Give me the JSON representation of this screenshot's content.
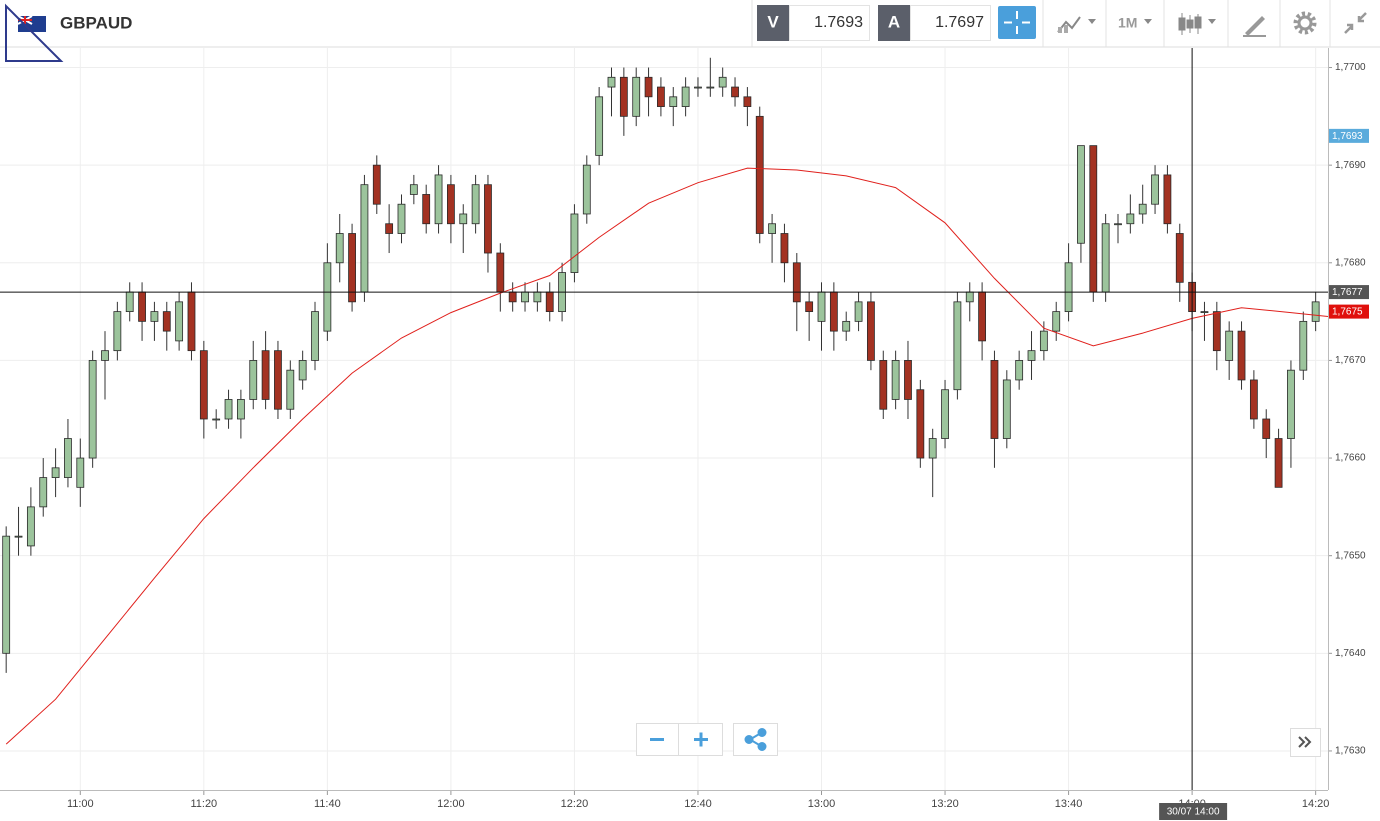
{
  "header": {
    "symbol": "GBPAUD",
    "bid_label": "V",
    "bid": "1.7693",
    "ask_label": "A",
    "ask": "1.7697",
    "timeframe": "1M"
  },
  "chart_data": {
    "type": "candlestick",
    "x": [
      "10:48",
      "10:50",
      "10:52",
      "10:54",
      "10:56",
      "10:58",
      "11:00",
      "11:02",
      "11:04",
      "11:06",
      "11:08",
      "11:10",
      "11:12",
      "11:14",
      "11:16",
      "11:18",
      "11:20",
      "11:22",
      "11:24",
      "11:26",
      "11:28",
      "11:30",
      "11:32",
      "11:34",
      "11:36",
      "11:38",
      "11:40",
      "11:42",
      "11:44",
      "11:46",
      "11:48",
      "11:50",
      "11:52",
      "11:54",
      "11:56",
      "11:58",
      "12:00",
      "12:02",
      "12:04",
      "12:06",
      "12:08",
      "12:10",
      "12:12",
      "12:14",
      "12:16",
      "12:18",
      "12:20",
      "12:22",
      "12:24",
      "12:26",
      "12:28",
      "12:30",
      "12:32",
      "12:34",
      "12:36",
      "12:38",
      "12:40",
      "12:42",
      "12:44",
      "12:46",
      "12:48",
      "12:50",
      "12:52",
      "12:54",
      "12:56",
      "12:58",
      "13:00",
      "13:02",
      "13:04",
      "13:06",
      "13:08",
      "13:10",
      "13:12",
      "13:14",
      "13:16",
      "13:18",
      "13:20",
      "13:22",
      "13:24",
      "13:26",
      "13:28",
      "13:30",
      "13:32",
      "13:34",
      "13:36",
      "13:38",
      "13:40",
      "13:42",
      "13:44",
      "13:46",
      "13:48",
      "13:50",
      "13:52",
      "13:54",
      "13:56",
      "13:58",
      "14:00",
      "14:02",
      "14:04",
      "14:06",
      "14:08",
      "14:10",
      "14:12",
      "14:14",
      "14:16",
      "14:18",
      "14:20"
    ],
    "open": [
      1.764,
      1.7652,
      1.7651,
      1.7655,
      1.7658,
      1.7658,
      1.7657,
      1.766,
      1.767,
      1.7671,
      1.7675,
      1.7677,
      1.7674,
      1.7675,
      1.7672,
      1.7677,
      1.7671,
      1.7664,
      1.7664,
      1.7664,
      1.7666,
      1.7671,
      1.7671,
      1.7665,
      1.7668,
      1.767,
      1.7673,
      1.768,
      1.7683,
      1.7677,
      1.769,
      1.7684,
      1.7683,
      1.7687,
      1.7687,
      1.7684,
      1.7688,
      1.7684,
      1.7684,
      1.7688,
      1.7681,
      1.7677,
      1.7676,
      1.7676,
      1.7677,
      1.7675,
      1.7679,
      1.7685,
      1.7691,
      1.7698,
      1.7699,
      1.7695,
      1.7699,
      1.7698,
      1.7696,
      1.7696,
      1.7698,
      1.7698,
      1.7698,
      1.7698,
      1.7697,
      1.7695,
      1.7683,
      1.7683,
      1.768,
      1.7676,
      1.7674,
      1.7677,
      1.7673,
      1.7674,
      1.7676,
      1.767,
      1.7666,
      1.767,
      1.7667,
      1.766,
      1.7662,
      1.7667,
      1.7676,
      1.7677,
      1.767,
      1.7662,
      1.7668,
      1.767,
      1.7671,
      1.7673,
      1.7675,
      1.7682,
      1.7692,
      1.7677,
      1.7684,
      1.7684,
      1.7685,
      1.7686,
      1.7689,
      1.7683,
      1.7678,
      1.7675,
      1.7675,
      1.767,
      1.7673,
      1.7668,
      1.7664,
      1.7662,
      1.7662,
      1.7669,
      1.7674
    ],
    "high": [
      1.7653,
      1.7655,
      1.7657,
      1.766,
      1.7661,
      1.7664,
      1.7662,
      1.7671,
      1.7673,
      1.7676,
      1.7678,
      1.7678,
      1.7676,
      1.7676,
      1.7677,
      1.7678,
      1.7672,
      1.7665,
      1.7667,
      1.7667,
      1.7672,
      1.7673,
      1.7672,
      1.767,
      1.7671,
      1.7676,
      1.7682,
      1.7685,
      1.7684,
      1.7689,
      1.7691,
      1.7686,
      1.7687,
      1.7689,
      1.7688,
      1.769,
      1.7689,
      1.7686,
      1.7689,
      1.7689,
      1.7682,
      1.7678,
      1.7678,
      1.7678,
      1.7678,
      1.768,
      1.7686,
      1.7691,
      1.7698,
      1.77,
      1.77,
      1.77,
      1.77,
      1.7699,
      1.7698,
      1.7699,
      1.7699,
      1.7701,
      1.77,
      1.7699,
      1.7698,
      1.7696,
      1.7685,
      1.7684,
      1.7681,
      1.7677,
      1.7678,
      1.7678,
      1.7675,
      1.7677,
      1.7677,
      1.7671,
      1.7671,
      1.7672,
      1.7668,
      1.7663,
      1.7668,
      1.7677,
      1.7678,
      1.7678,
      1.7671,
      1.7669,
      1.7671,
      1.7673,
      1.7674,
      1.7676,
      1.7682,
      1.7692,
      1.7692,
      1.7685,
      1.7685,
      1.7687,
      1.7688,
      1.769,
      1.769,
      1.7684,
      1.7679,
      1.7676,
      1.7676,
      1.7674,
      1.7674,
      1.7669,
      1.7665,
      1.7663,
      1.767,
      1.7675,
      1.7677
    ],
    "low": [
      1.7638,
      1.765,
      1.765,
      1.7654,
      1.7656,
      1.7657,
      1.7655,
      1.7659,
      1.7666,
      1.767,
      1.7674,
      1.7672,
      1.7672,
      1.7671,
      1.7671,
      1.767,
      1.7662,
      1.7663,
      1.7663,
      1.7662,
      1.7665,
      1.7665,
      1.7664,
      1.7664,
      1.7667,
      1.7669,
      1.7672,
      1.7678,
      1.7675,
      1.7676,
      1.7685,
      1.7681,
      1.7682,
      1.7686,
      1.7683,
      1.7683,
      1.7682,
      1.7681,
      1.7683,
      1.7679,
      1.7675,
      1.7675,
      1.7675,
      1.7675,
      1.7674,
      1.7674,
      1.7678,
      1.7684,
      1.769,
      1.7695,
      1.7693,
      1.7694,
      1.7695,
      1.7695,
      1.7694,
      1.7695,
      1.7697,
      1.7697,
      1.7697,
      1.7696,
      1.7694,
      1.7682,
      1.768,
      1.7678,
      1.7673,
      1.7672,
      1.7671,
      1.7671,
      1.7672,
      1.7673,
      1.7669,
      1.7664,
      1.7665,
      1.7664,
      1.7659,
      1.7656,
      1.7661,
      1.7666,
      1.7674,
      1.767,
      1.7659,
      1.7661,
      1.7667,
      1.7668,
      1.767,
      1.7672,
      1.7674,
      1.768,
      1.7676,
      1.7676,
      1.7682,
      1.7683,
      1.7684,
      1.7685,
      1.7683,
      1.7676,
      1.7673,
      1.7672,
      1.7669,
      1.7668,
      1.7667,
      1.7663,
      1.766,
      1.7657,
      1.7659,
      1.7668,
      1.7673
    ],
    "close": [
      1.7652,
      1.7652,
      1.7655,
      1.7658,
      1.7659,
      1.7662,
      1.766,
      1.767,
      1.7671,
      1.7675,
      1.7677,
      1.7674,
      1.7675,
      1.7673,
      1.7676,
      1.7671,
      1.7664,
      1.7664,
      1.7666,
      1.7666,
      1.767,
      1.7666,
      1.7665,
      1.7669,
      1.767,
      1.7675,
      1.768,
      1.7683,
      1.7676,
      1.7688,
      1.7686,
      1.7683,
      1.7686,
      1.7688,
      1.7684,
      1.7689,
      1.7684,
      1.7685,
      1.7688,
      1.7681,
      1.7677,
      1.7676,
      1.7677,
      1.7677,
      1.7675,
      1.7679,
      1.7685,
      1.769,
      1.7697,
      1.7699,
      1.7695,
      1.7699,
      1.7697,
      1.7696,
      1.7697,
      1.7698,
      1.7698,
      1.7698,
      1.7699,
      1.7697,
      1.7696,
      1.7683,
      1.7684,
      1.768,
      1.7676,
      1.7675,
      1.7677,
      1.7673,
      1.7674,
      1.7676,
      1.767,
      1.7665,
      1.767,
      1.7666,
      1.766,
      1.7662,
      1.7667,
      1.7676,
      1.7677,
      1.7672,
      1.7662,
      1.7668,
      1.767,
      1.7671,
      1.7673,
      1.7675,
      1.768,
      1.7692,
      1.7677,
      1.7684,
      1.7684,
      1.7685,
      1.7686,
      1.7689,
      1.7684,
      1.7678,
      1.7675,
      1.7675,
      1.7671,
      1.7673,
      1.7668,
      1.7664,
      1.7662,
      1.7657,
      1.7669,
      1.7674,
      1.7676
    ],
    "up_color": "#9cc49c",
    "down_color": "#a33222",
    "ma": {
      "color": "#e0201c",
      "x": [
        "10:48",
        "10:56",
        "11:04",
        "11:12",
        "11:20",
        "11:28",
        "11:36",
        "11:44",
        "11:52",
        "12:00",
        "12:08",
        "12:16",
        "12:24",
        "12:32",
        "12:40",
        "12:48",
        "12:56",
        "13:04",
        "13:12",
        "13:20",
        "13:28",
        "13:36",
        "13:44",
        "13:52",
        "14:00",
        "14:08",
        "14:16",
        "14:22"
      ],
      "values": [
        1.76307,
        1.76353,
        1.76415,
        1.76477,
        1.76538,
        1.7659,
        1.7664,
        1.76687,
        1.76723,
        1.76749,
        1.76769,
        1.76787,
        1.76826,
        1.76861,
        1.76882,
        1.76897,
        1.76895,
        1.76889,
        1.76877,
        1.76841,
        1.76784,
        1.76733,
        1.76715,
        1.76728,
        1.76743,
        1.76754,
        1.76749,
        1.76745
      ]
    },
    "xlim": [
      "10:47",
      "14:22"
    ],
    "xticks": [
      "11:00",
      "11:20",
      "11:40",
      "12:00",
      "12:20",
      "12:40",
      "13:00",
      "13:20",
      "13:40",
      "14:00",
      "14:20"
    ],
    "ylim": [
      1.7626,
      1.7702
    ],
    "yticks": [
      {
        "value": 1.763,
        "label": "1,7630"
      },
      {
        "value": 1.764,
        "label": "1,7640"
      },
      {
        "value": 1.765,
        "label": "1,7650"
      },
      {
        "value": 1.766,
        "label": "1,7660"
      },
      {
        "value": 1.767,
        "label": "1,7670"
      },
      {
        "value": 1.768,
        "label": "1,7680"
      },
      {
        "value": 1.769,
        "label": "1,7690"
      },
      {
        "value": 1.77,
        "label": "1,7700"
      }
    ],
    "grid": true,
    "price_markers": [
      {
        "value": 1.7693,
        "label": "1,7693",
        "color": "#5aabdc",
        "line": false
      },
      {
        "value": 1.7677,
        "label": "1,7677",
        "color": "#555555",
        "line": true
      },
      {
        "value": 1.7675,
        "label": "1,7675",
        "color": "#e0100c",
        "line": false
      }
    ],
    "crosshair": {
      "x": "14:00",
      "label": "30/07 14:00"
    }
  }
}
